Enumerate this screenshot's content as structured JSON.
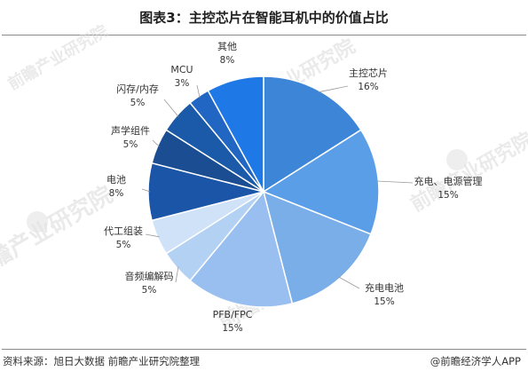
{
  "title": "图表3：主控芯片在智能耳机中的价值占比",
  "footer": {
    "source": "资料来源：旭日大数据 前瞻产业研究院整理",
    "brand": "@前瞻经济学人APP"
  },
  "watermark": {
    "text": "前瞻产业研究院"
  },
  "chart_data": {
    "type": "pie",
    "title": "图表3：主控芯片在智能耳机中的价值占比",
    "start": "top",
    "direction": "clockwise",
    "slices": [
      {
        "label": "主控芯片",
        "value": 16,
        "value_label": "16%",
        "color": "#3d85d6"
      },
      {
        "label": "充电、电源管理",
        "value": 15,
        "value_label": "15%",
        "color": "#5b9ee8"
      },
      {
        "label": "充电电池",
        "value": 15,
        "value_label": "15%",
        "color": "#7aaee8"
      },
      {
        "label": "PFB/FPC",
        "value": 15,
        "value_label": "15%",
        "color": "#98bfef"
      },
      {
        "label": "音频编解码",
        "value": 5,
        "value_label": "5%",
        "color": "#b2d1f3"
      },
      {
        "label": "代工组装",
        "value": 5,
        "value_label": "5%",
        "color": "#cfe2f8"
      },
      {
        "label": "电池",
        "value": 8,
        "value_label": "8%",
        "color": "#1a55a8"
      },
      {
        "label": "声学组件",
        "value": 5,
        "value_label": "5%",
        "color": "#1a4d92"
      },
      {
        "label": "闪存/内存",
        "value": 5,
        "value_label": "5%",
        "color": "#1a5aa8"
      },
      {
        "label": "MCU",
        "value": 3,
        "value_label": "3%",
        "color": "#2166c2"
      },
      {
        "label": "其他",
        "value": 8,
        "value_label": "8%",
        "color": "#1e78e6"
      }
    ]
  }
}
